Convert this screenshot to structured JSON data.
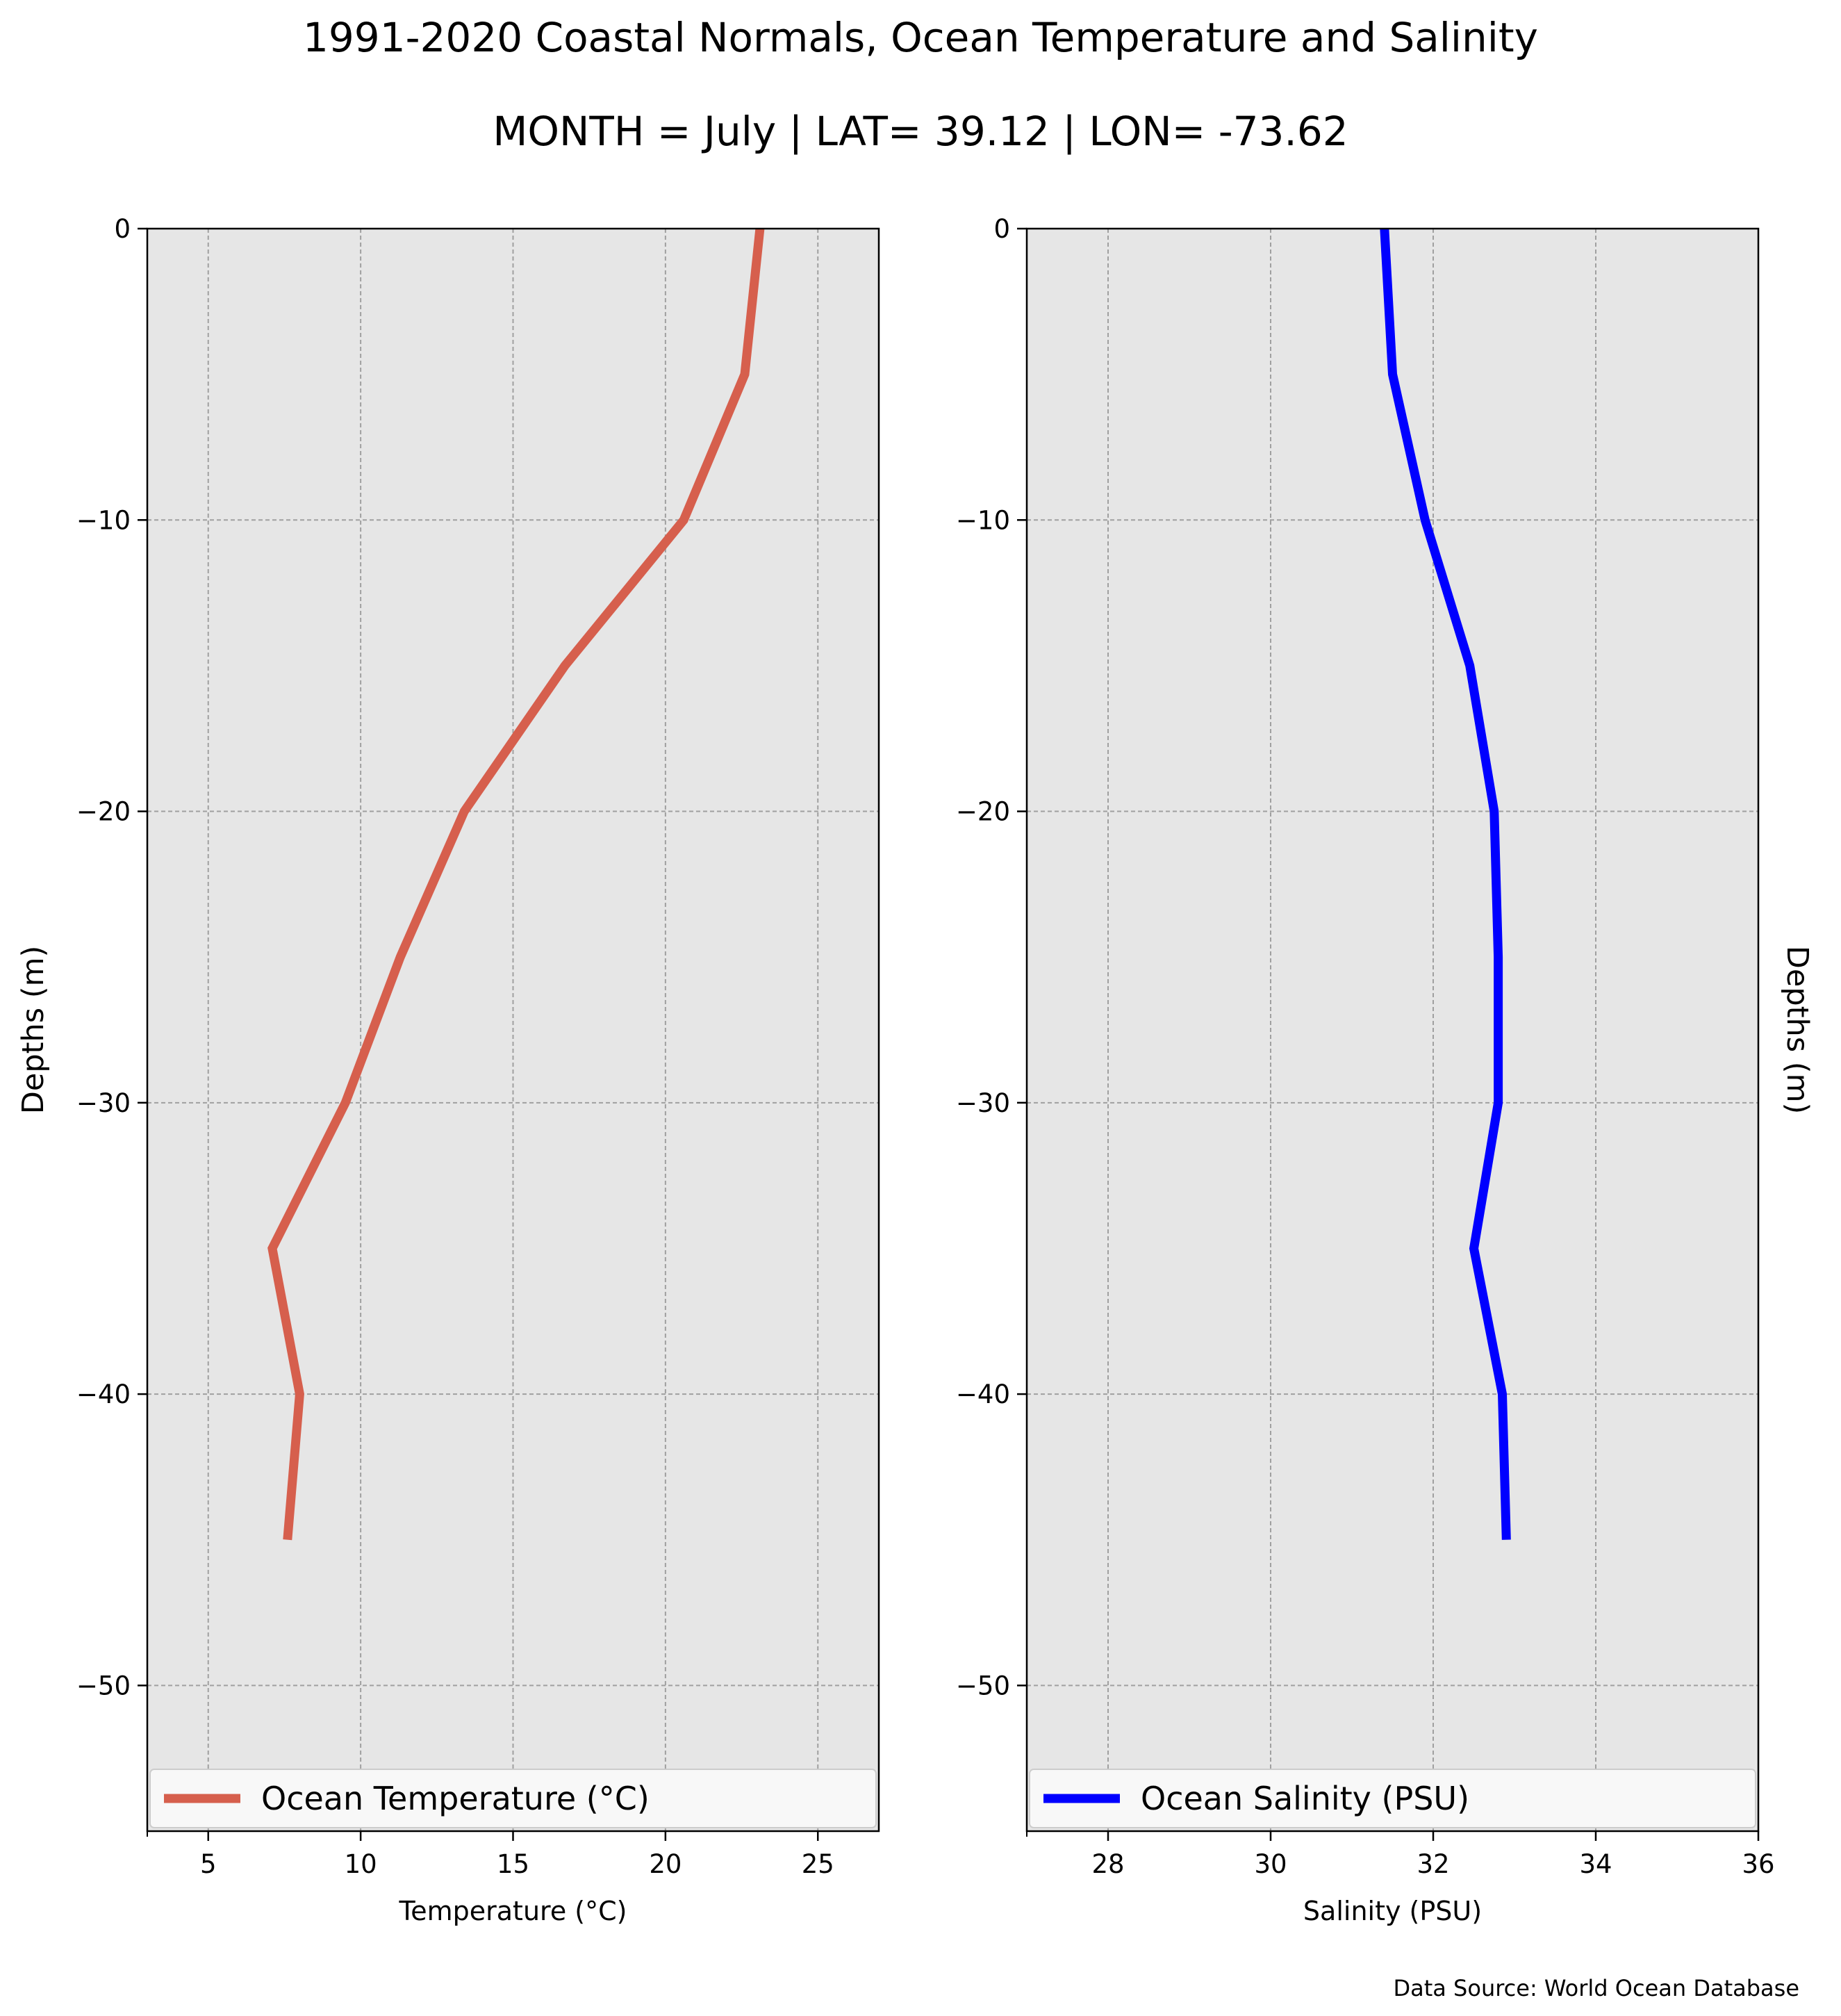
{
  "title": "1991-2020 Coastal Normals, Ocean Temperature and Salinity",
  "subtitle": "MONTH = July | LAT= 39.12 | LON= -73.62",
  "source": "Data Source: World Ocean Database",
  "chart_data": [
    {
      "type": "line",
      "xlabel": "Temperature (°C)",
      "ylabel": "Depths (m)",
      "xlim": [
        3,
        27
      ],
      "ylim": [
        -55,
        0
      ],
      "xticks": [
        5,
        10,
        15,
        20,
        25
      ],
      "yticks": [
        0,
        -10,
        -20,
        -30,
        -40,
        -50
      ],
      "grid": true,
      "legend_position": "bottom",
      "series": [
        {
          "name": "Ocean Temperature (°C)",
          "color": "#d65f4d",
          "x": [
            23.1,
            22.6,
            20.6,
            16.7,
            13.4,
            11.3,
            9.5,
            7.1,
            8.0,
            7.6
          ],
          "y": [
            0,
            -5,
            -10,
            -15,
            -20,
            -25,
            -30,
            -35,
            -40,
            -45
          ]
        }
      ]
    },
    {
      "type": "line",
      "xlabel": "Salinity (PSU)",
      "ylabel": "Depths (m)",
      "xlim": [
        27,
        36
      ],
      "ylim": [
        -55,
        0
      ],
      "xticks": [
        28,
        30,
        32,
        34,
        36
      ],
      "yticks": [
        0,
        -10,
        -20,
        -30,
        -40,
        -50
      ],
      "grid": true,
      "legend_position": "bottom",
      "series": [
        {
          "name": "Ocean Salinity (PSU)",
          "color": "#0000ff",
          "x": [
            31.4,
            31.5,
            31.9,
            32.45,
            32.75,
            32.8,
            32.8,
            32.5,
            32.85,
            32.9
          ],
          "y": [
            0,
            -5,
            -10,
            -15,
            -20,
            -25,
            -30,
            -35,
            -40,
            -45
          ]
        }
      ]
    }
  ]
}
